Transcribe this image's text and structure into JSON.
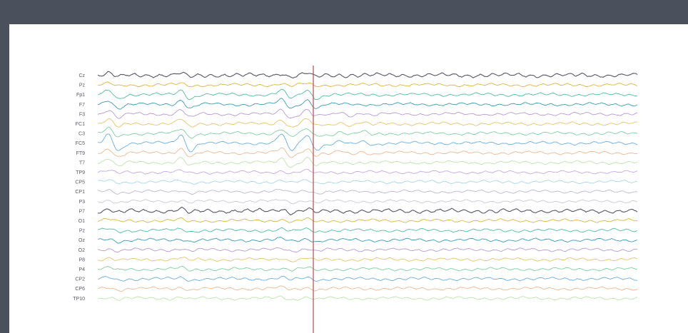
{
  "chart_data": {
    "type": "line",
    "title": "",
    "xlabel": "",
    "ylabel": "",
    "grid": false,
    "legend": "none",
    "event_marker": {
      "color": "#b94a4a"
    },
    "channels": [
      {
        "label": "Cz",
        "color": "#555566"
      },
      {
        "label": "Pz",
        "color": "#e0b43c"
      },
      {
        "label": "Fp1",
        "color": "#4fbf9a"
      },
      {
        "label": "F7",
        "color": "#3a9bb0"
      },
      {
        "label": "F3",
        "color": "#b79ad6"
      },
      {
        "label": "FC1",
        "color": "#e6c46a"
      },
      {
        "label": "C3",
        "color": "#7fd0a0"
      },
      {
        "label": "FC5",
        "color": "#6aaee0"
      },
      {
        "label": "FT9",
        "color": "#f0b890"
      },
      {
        "label": "T7",
        "color": "#bfe3b0"
      },
      {
        "label": "TP9",
        "color": "#c3a9e6"
      },
      {
        "label": "CP5",
        "color": "#a8d8e0"
      },
      {
        "label": "CP1",
        "color": "#b8bcc8"
      },
      {
        "label": "P3",
        "color": "#c9c9d2"
      },
      {
        "label": "P7",
        "color": "#555566"
      },
      {
        "label": "O1",
        "color": "#e0b43c"
      },
      {
        "label": "Pz",
        "color": "#4fbf9a"
      },
      {
        "label": "Oz",
        "color": "#3a9bb0"
      },
      {
        "label": "O2",
        "color": "#b79ad6"
      },
      {
        "label": "P8",
        "color": "#e6c46a"
      },
      {
        "label": "P4",
        "color": "#7fd0a0"
      },
      {
        "label": "CP2",
        "color": "#6aaee0"
      },
      {
        "label": "CP6",
        "color": "#f0b890"
      },
      {
        "label": "TP10",
        "color": "#bfe3b0"
      }
    ]
  }
}
